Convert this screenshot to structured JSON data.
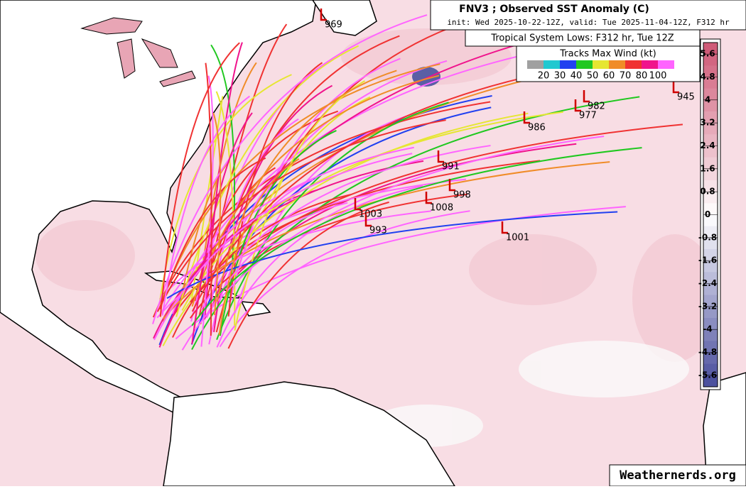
{
  "header": {
    "title": "FNV3 ; Observed SST Anomaly (C)",
    "subtitle": "init: Wed 2025-10-22-12Z, valid: Tue 2025-11-04-12Z, F312 hr"
  },
  "lows_legend": {
    "title": "Tropical System Lows: F312 hr, Tue 12Z"
  },
  "wind_legend": {
    "title": "Tracks Max Wind (kt)",
    "colors": [
      "#a0a0a0",
      "#20c8d0",
      "#2040f0",
      "#20c820",
      "#e6e632",
      "#f08c28",
      "#f03232",
      "#f0148c",
      "#ff64ff"
    ],
    "labels": [
      20,
      30,
      40,
      50,
      60,
      70,
      80,
      100
    ]
  },
  "colorbar": {
    "lim": [
      -6,
      6
    ],
    "ticks": [
      5.6,
      4.8,
      4,
      3.2,
      2.4,
      1.6,
      0.8,
      0,
      -0.8,
      -1.6,
      -2.4,
      -3.2,
      -4,
      -4.8,
      -5.6
    ]
  },
  "lows": [
    969,
    945,
    982,
    977,
    986,
    991,
    998,
    1008,
    1003,
    993,
    1001
  ],
  "watermark": "Weathernerds.org"
}
